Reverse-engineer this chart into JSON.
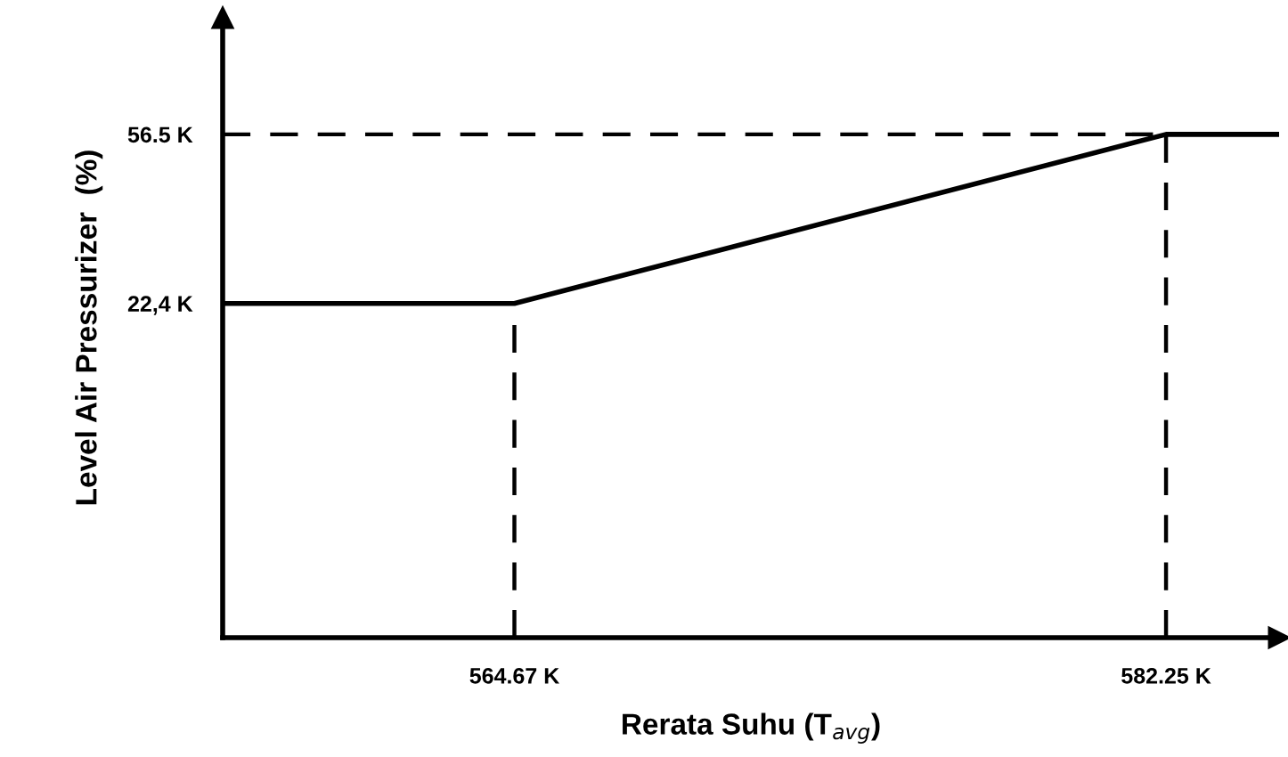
{
  "chart_data": {
    "type": "line",
    "xlabel": "Rerata Suhu (T$_{avg}$)",
    "ylabel": "Level Air Pressurizer  (%)",
    "x": [
      556.8,
      564.67,
      582.25,
      585.3
    ],
    "series": [
      {
        "color": "#000000",
        "values": [
          22.4,
          22.4,
          56.5,
          56.5
        ]
      }
    ],
    "xlim": [
      556.8,
      585.3
    ],
    "ylim": [
      -45,
      80
    ],
    "xticks": [
      {
        "value": 564.67,
        "label": "564.67 K"
      },
      {
        "value": 582.25,
        "label": "582.25 K"
      }
    ],
    "yticks": [
      {
        "value": 22.4,
        "label": "22,4 K"
      },
      {
        "value": 56.5,
        "label": "56.5 K"
      }
    ],
    "ref_lines": [
      {
        "axis": "x",
        "value": 564.67,
        "color": "#000000",
        "line_style": "dashed"
      },
      {
        "axis": "x",
        "value": 582.25,
        "color": "#000000",
        "line_style": "dashed"
      },
      {
        "axis": "y",
        "value": 56.5,
        "color": "#000000",
        "line_style": "dashed"
      }
    ],
    "grid": false,
    "legend": false,
    "marker": "none",
    "line_style": "solid"
  }
}
